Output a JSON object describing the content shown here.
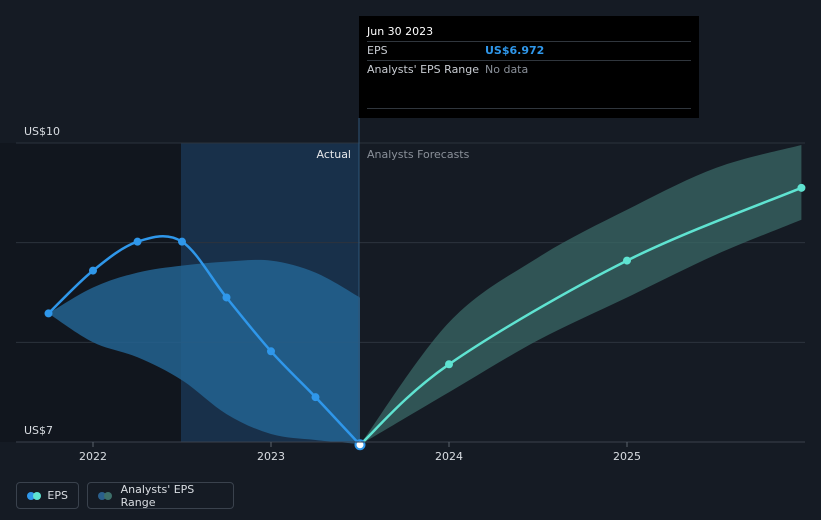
{
  "chart_data": {
    "type": "line",
    "ylim": [
      7,
      10
    ],
    "y_axis": {
      "top_label": "US$10",
      "bottom_label": "US$7"
    },
    "x_ticks": [
      {
        "label": "2022",
        "x": 2022.0
      },
      {
        "label": "2023",
        "x": 2023.0
      },
      {
        "label": "2024",
        "x": 2024.0
      },
      {
        "label": "2025",
        "x": 2025.0
      }
    ],
    "region_labels": {
      "actual": "Actual",
      "forecast": "Analysts Forecasts"
    },
    "series": [
      {
        "name": "EPS",
        "kind": "actual",
        "points": [
          {
            "x": 2021.75,
            "y": 8.29
          },
          {
            "x": 2022.0,
            "y": 8.72
          },
          {
            "x": 2022.25,
            "y": 9.01
          },
          {
            "x": 2022.5,
            "y": 9.01
          },
          {
            "x": 2022.75,
            "y": 8.45
          },
          {
            "x": 2023.0,
            "y": 7.91
          },
          {
            "x": 2023.25,
            "y": 7.45
          },
          {
            "x": 2023.5,
            "y": 6.972
          }
        ]
      },
      {
        "name": "EPS",
        "kind": "forecast",
        "points": [
          {
            "x": 2023.5,
            "y": 6.972
          },
          {
            "x": 2024.0,
            "y": 7.78
          },
          {
            "x": 2025.0,
            "y": 8.82
          },
          {
            "x": 2025.98,
            "y": 9.55
          }
        ]
      }
    ],
    "ranges": [
      {
        "name": "Analysts' EPS Range",
        "kind": "past",
        "x": [
          2021.75,
          2022.0,
          2022.25,
          2022.5,
          2022.75,
          2023.0,
          2023.25,
          2023.5
        ],
        "low": [
          8.29,
          8.0,
          7.85,
          7.62,
          7.28,
          7.08,
          7.02,
          6.98
        ],
        "high": [
          8.29,
          8.55,
          8.7,
          8.77,
          8.81,
          8.82,
          8.7,
          8.45
        ]
      },
      {
        "name": "Analysts' EPS Range",
        "kind": "forecast",
        "x": [
          2023.5,
          2024.0,
          2024.5,
          2025.0,
          2025.5,
          2025.98
        ],
        "low": [
          6.972,
          7.5,
          8.02,
          8.45,
          8.88,
          9.23
        ],
        "high": [
          6.972,
          8.2,
          8.85,
          9.33,
          9.75,
          9.98
        ]
      }
    ],
    "highlight_point": {
      "x": 2023.5,
      "y": 6.972
    },
    "tooltip": {
      "date": "Jun 30 2023",
      "rows": [
        {
          "label": "EPS",
          "value": "US$6.972"
        },
        {
          "label": "Analysts' EPS Range",
          "value": "No data"
        }
      ]
    },
    "legend": [
      {
        "label": "EPS",
        "colors": [
          "#2f97ea",
          "#5fe3d1"
        ]
      },
      {
        "label": "Analysts' EPS Range",
        "colors": [
          "#2a5f8c",
          "#3d6f6a"
        ]
      }
    ],
    "grid": true,
    "colors": {
      "background": "#151b24",
      "eps_actual": "#2f97ea",
      "eps_forecast": "#5fe3d1",
      "range_past": "#236391",
      "range_forecast": "#3a6865",
      "grid": "#2c333d",
      "axis_text": "#d9dde2",
      "region_text": "#8a9099"
    }
  }
}
